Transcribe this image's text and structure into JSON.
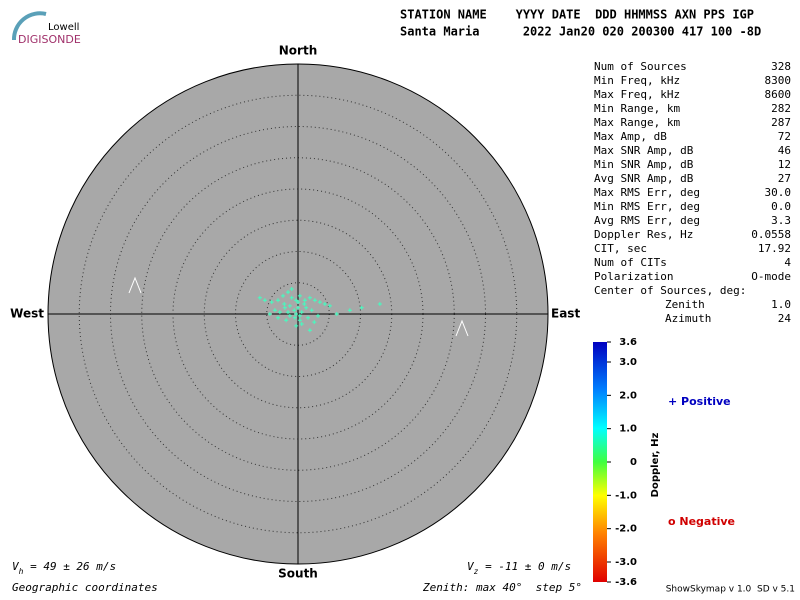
{
  "logo": {
    "top": "Lowell",
    "bottom": "DIGISONDE"
  },
  "header": {
    "line1": "STATION NAME    YYYY DATE  DDD HHMMSS AXN PPS IGP",
    "line2": "Santa Maria      2022 Jan20 020 200300 417 100 -8D"
  },
  "stats": {
    "rows": [
      [
        "Num of Sources",
        "328"
      ],
      [
        "Min Freq, kHz",
        "8300"
      ],
      [
        "Max Freq, kHz",
        "8600"
      ],
      [
        "Min Range, km",
        "282"
      ],
      [
        "Max Range, km",
        "287"
      ],
      [
        "Max Amp, dB",
        "72"
      ],
      [
        "Max SNR Amp, dB",
        "46"
      ],
      [
        "Min SNR Amp, dB",
        "12"
      ],
      [
        "Avg SNR Amp, dB",
        "27"
      ],
      [
        "Max RMS Err, deg",
        "30.0"
      ],
      [
        "Min RMS Err, deg",
        "0.0"
      ],
      [
        "Avg RMS Err, deg",
        "3.3"
      ],
      [
        "Doppler Res, Hz",
        "0.0558"
      ],
      [
        "CIT, sec",
        "17.92"
      ],
      [
        "Num of CITs",
        "4"
      ],
      [
        "Polarization",
        "O-mode"
      ]
    ],
    "center_title": "Center of Sources, deg:",
    "center_rows": [
      [
        "Zenith",
        "1.0"
      ],
      [
        "Azimuth",
        "24"
      ]
    ]
  },
  "chart_data": {
    "type": "polar-scatter",
    "directions": {
      "north": "North",
      "south": "South",
      "east": "East",
      "west": "West"
    },
    "rlim": [
      0,
      40
    ],
    "rings": [
      5,
      10,
      15,
      20,
      25,
      30,
      35
    ],
    "series": [
      {
        "name": "Sources",
        "color": "#40ffc0",
        "x": [
          -6.1,
          -5.3,
          -4.2,
          -3.2,
          -2.4,
          -1.6,
          -1,
          -0.3,
          0.3,
          1.1,
          1.9,
          2.7,
          3.5,
          4.3,
          5.1,
          6.2,
          8.3,
          10.2,
          13.1,
          -3.7,
          -2.9,
          -2.1,
          -1.3,
          -0.6,
          0,
          0.6,
          1.3,
          -1.3,
          -0.5,
          0.3,
          -1.9,
          -3.2,
          -4.5,
          1.6,
          2.6,
          3.2,
          1.9,
          -0.3,
          0.6,
          -2.2,
          -1,
          0,
          1,
          2.2,
          -1.6,
          -0.3,
          0.3
        ],
        "y": [
          2.6,
          2.2,
          1.9,
          2.2,
          2.9,
          3.5,
          4,
          2.2,
          2.9,
          2.2,
          2.6,
          2.2,
          1.9,
          1.6,
          1.3,
          0,
          0.6,
          1,
          1.6,
          0.6,
          0.3,
          1,
          1.3,
          0.6,
          1,
          0.3,
          1,
          -0.3,
          -0.6,
          -1,
          -1,
          -0.6,
          0,
          -0.6,
          -1.3,
          -0.3,
          -2.6,
          -1.9,
          -1.6,
          1.6,
          2.6,
          1.9,
          1.6,
          0.6,
          0.3,
          0,
          -0.3
        ]
      }
    ],
    "colorbar": {
      "label": "Doppler, Hz",
      "lim": [
        -3.6,
        3.6
      ],
      "ticks": [
        3.6,
        {
          "value": 3,
          "label": "3.0"
        },
        {
          "value": 2,
          "label": "2.0"
        },
        {
          "value": 1,
          "label": "1.0"
        },
        0,
        {
          "value": -1,
          "label": "-1.0"
        },
        {
          "value": -2,
          "label": "-2.0"
        },
        {
          "value": -3,
          "label": "-3.0"
        },
        -3.6
      ]
    },
    "legend": {
      "positive": "+ Positive",
      "negative": "o Negative"
    },
    "vh": {
      "symbol": "V",
      "sub": "h",
      "text": " = 49 ± 26 m/s"
    },
    "vz": {
      "symbol": "V",
      "sub": "z",
      "text": " = -11 ± 0 m/s"
    },
    "coords": "Geographic coordinates",
    "zenith_note": "Zenith: max 40°  step 5°"
  },
  "footer": "ShowSkymap v 1.0  SD v 5.1"
}
